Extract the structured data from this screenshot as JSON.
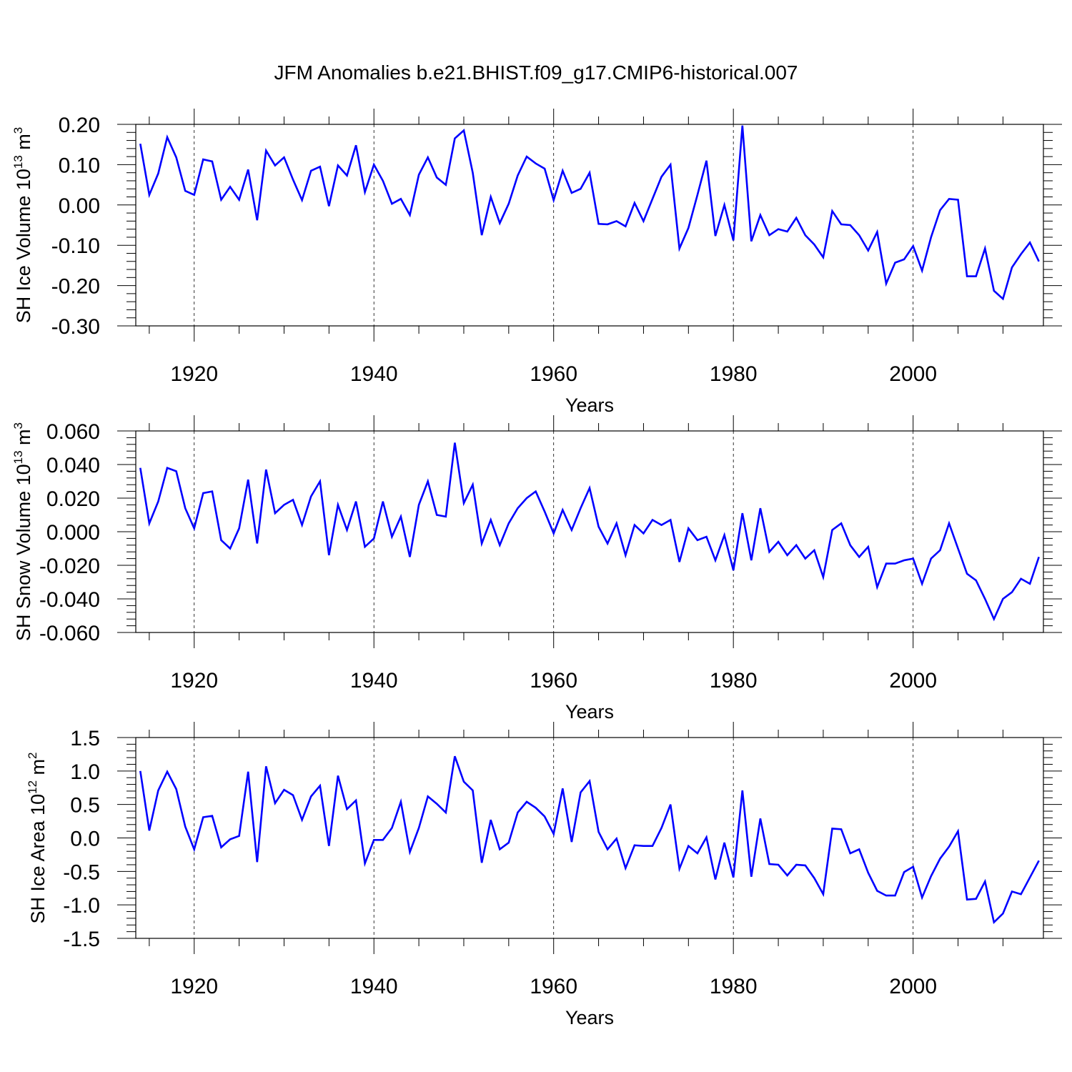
{
  "title": "JFM Anomalies b.e21.BHIST.f09_g17.CMIP6-historical.007",
  "series_color": "#0000ff",
  "chart_data": [
    {
      "type": "line",
      "ylabel": {
        "base": "SH Ice Volume 10",
        "exp": "13",
        "unit": " m",
        "unit_exp": "3"
      },
      "xlabel": "Years",
      "xlim": [
        1913.5,
        2014.5
      ],
      "ylim": [
        -0.3,
        0.2
      ],
      "yticks": [
        -0.3,
        -0.2,
        -0.1,
        0.0,
        0.1,
        0.2
      ],
      "ytick_labels": [
        "-0.30",
        "-0.20",
        "-0.10",
        "0.00",
        "0.10",
        "0.20"
      ],
      "xticks": [
        1920,
        1940,
        1960,
        1980,
        2000
      ],
      "xtick_labels": [
        "1920",
        "1940",
        "1960",
        "1980",
        "2000"
      ],
      "grid": "vertical dashed at major x ticks",
      "x_start": 1914,
      "values": [
        0.152,
        0.025,
        0.078,
        0.168,
        0.118,
        0.035,
        0.025,
        0.113,
        0.108,
        0.013,
        0.045,
        0.013,
        0.088,
        -0.038,
        0.135,
        0.098,
        0.118,
        0.063,
        0.012,
        0.085,
        0.095,
        -0.003,
        0.098,
        0.073,
        0.148,
        0.032,
        0.1,
        0.06,
        0.003,
        0.015,
        -0.025,
        0.075,
        0.118,
        0.068,
        0.05,
        0.165,
        0.185,
        0.08,
        -0.075,
        0.02,
        -0.045,
        0.003,
        0.073,
        0.12,
        0.103,
        0.09,
        0.012,
        0.085,
        0.03,
        0.04,
        0.08,
        -0.047,
        -0.048,
        -0.04,
        -0.053,
        0.005,
        -0.04,
        0.015,
        0.07,
        0.1,
        -0.108,
        -0.057,
        0.025,
        0.11,
        -0.077,
        0.0,
        -0.088,
        0.197,
        -0.09,
        -0.025,
        -0.075,
        -0.06,
        -0.066,
        -0.032,
        -0.075,
        -0.098,
        -0.13,
        -0.015,
        -0.048,
        -0.05,
        -0.075,
        -0.113,
        -0.067,
        -0.195,
        -0.143,
        -0.135,
        -0.102,
        -0.163,
        -0.08,
        -0.013,
        0.015,
        0.013,
        -0.177,
        -0.177,
        -0.108,
        -0.213,
        -0.233,
        -0.155,
        -0.122,
        -0.093,
        -0.14
      ]
    },
    {
      "type": "line",
      "ylabel": {
        "base": "SH Snow Volume 10",
        "exp": "13",
        "unit": " m",
        "unit_exp": "3"
      },
      "xlabel": "Years",
      "xlim": [
        1913.5,
        2014.5
      ],
      "ylim": [
        -0.06,
        0.06
      ],
      "yticks": [
        -0.06,
        -0.04,
        -0.02,
        0.0,
        0.02,
        0.04,
        0.06
      ],
      "ytick_labels": [
        "-0.060",
        "-0.040",
        "-0.020",
        "0.000",
        "0.020",
        "0.040",
        "0.060"
      ],
      "xticks": [
        1920,
        1940,
        1960,
        1980,
        2000
      ],
      "xtick_labels": [
        "1920",
        "1940",
        "1960",
        "1980",
        "2000"
      ],
      "grid": "vertical dashed at major x ticks",
      "x_start": 1914,
      "values": [
        0.038,
        0.005,
        0.018,
        0.038,
        0.036,
        0.014,
        0.002,
        0.023,
        0.024,
        -0.005,
        -0.01,
        0.002,
        0.031,
        -0.007,
        0.037,
        0.011,
        0.016,
        0.019,
        0.004,
        0.021,
        0.03,
        -0.014,
        0.016,
        0.001,
        0.018,
        -0.009,
        -0.004,
        0.018,
        -0.003,
        0.009,
        -0.015,
        0.016,
        0.03,
        0.01,
        0.009,
        0.053,
        0.017,
        0.028,
        -0.007,
        0.007,
        -0.008,
        0.005,
        0.014,
        0.02,
        0.024,
        0.012,
        -0.001,
        0.013,
        0.001,
        0.014,
        0.026,
        0.003,
        -0.007,
        0.005,
        -0.014,
        0.004,
        -0.001,
        0.007,
        0.004,
        0.007,
        -0.018,
        0.002,
        -0.005,
        -0.003,
        -0.017,
        -0.002,
        -0.023,
        0.011,
        -0.017,
        0.014,
        -0.012,
        -0.006,
        -0.014,
        -0.008,
        -0.016,
        -0.011,
        -0.027,
        0.001,
        0.005,
        -0.008,
        -0.015,
        -0.009,
        -0.033,
        -0.019,
        -0.019,
        -0.017,
        -0.016,
        -0.031,
        -0.016,
        -0.011,
        0.005,
        -0.01,
        -0.025,
        -0.029,
        -0.04,
        -0.052,
        -0.04,
        -0.036,
        -0.028,
        -0.031,
        -0.015
      ]
    },
    {
      "type": "line",
      "ylabel": {
        "base": "SH Ice Area 10",
        "exp": "12",
        "unit": " m",
        "unit_exp": "2"
      },
      "xlabel": "Years",
      "xlim": [
        1913.5,
        2014.5
      ],
      "ylim": [
        -1.5,
        1.5
      ],
      "yticks": [
        -1.5,
        -1.0,
        -0.5,
        0.0,
        0.5,
        1.0,
        1.5
      ],
      "ytick_labels": [
        "-1.5",
        "-1.0",
        "-0.5",
        "0.0",
        "0.5",
        "1.0",
        "1.5"
      ],
      "xticks": [
        1920,
        1940,
        1960,
        1980,
        2000
      ],
      "xtick_labels": [
        "1920",
        "1940",
        "1960",
        "1980",
        "2000"
      ],
      "grid": "vertical dashed at major x ticks",
      "x_start": 1914,
      "values": [
        1.0,
        0.11,
        0.71,
        0.99,
        0.73,
        0.17,
        -0.17,
        0.31,
        0.33,
        -0.14,
        -0.02,
        0.03,
        0.99,
        -0.36,
        1.07,
        0.52,
        0.72,
        0.64,
        0.27,
        0.62,
        0.78,
        -0.12,
        0.93,
        0.43,
        0.56,
        -0.38,
        -0.03,
        -0.03,
        0.15,
        0.54,
        -0.21,
        0.15,
        0.62,
        0.51,
        0.38,
        1.22,
        0.84,
        0.71,
        -0.37,
        0.27,
        -0.17,
        -0.07,
        0.38,
        0.54,
        0.45,
        0.32,
        0.06,
        0.74,
        -0.06,
        0.68,
        0.85,
        0.09,
        -0.17,
        -0.01,
        -0.45,
        -0.11,
        -0.12,
        -0.12,
        0.15,
        0.5,
        -0.46,
        -0.12,
        -0.23,
        0.01,
        -0.62,
        -0.07,
        -0.59,
        0.71,
        -0.58,
        0.29,
        -0.39,
        -0.4,
        -0.56,
        -0.4,
        -0.41,
        -0.6,
        -0.84,
        0.14,
        0.13,
        -0.23,
        -0.17,
        -0.52,
        -0.79,
        -0.86,
        -0.86,
        -0.51,
        -0.43,
        -0.89,
        -0.57,
        -0.31,
        -0.13,
        0.1,
        -0.92,
        -0.91,
        -0.65,
        -1.26,
        -1.13,
        -0.8,
        -0.84,
        -0.59,
        -0.34
      ]
    }
  ]
}
